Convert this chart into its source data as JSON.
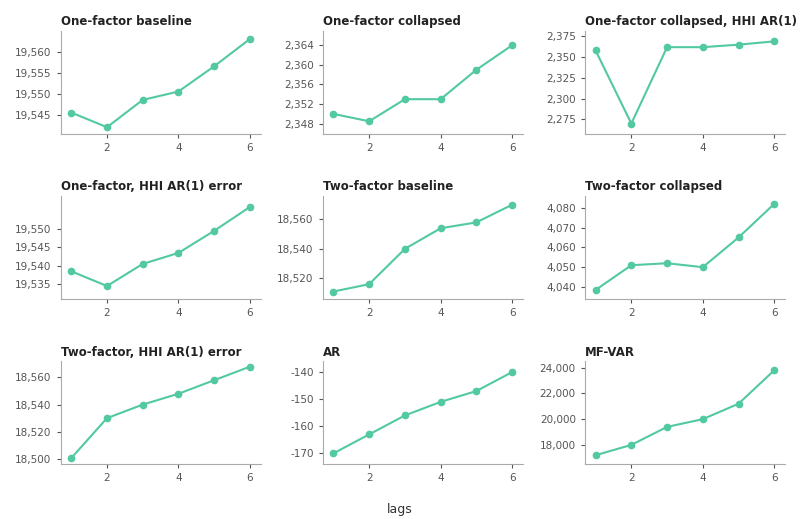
{
  "panels": [
    {
      "title": "One-factor baseline",
      "x": [
        1,
        2,
        3,
        4,
        5,
        6
      ],
      "y": [
        19545.5,
        19542.0,
        19548.5,
        19550.5,
        19556.5,
        19563.0
      ],
      "yticks": [
        19545,
        19550,
        19555,
        19560
      ],
      "ylim": [
        19540.5,
        19565
      ]
    },
    {
      "title": "One-factor collapsed",
      "x": [
        1,
        2,
        3,
        4,
        5,
        6
      ],
      "y": [
        2350.0,
        2348.5,
        2353.0,
        2353.0,
        2359.0,
        2364.0
      ],
      "yticks": [
        2348,
        2352,
        2356,
        2360,
        2364
      ],
      "ylim": [
        2346,
        2367
      ]
    },
    {
      "title": "One-factor collapsed, HHI AR(1) error",
      "x": [
        1,
        2,
        3,
        4,
        5,
        6
      ],
      "y": [
        2358.0,
        2270.0,
        2362.0,
        2362.0,
        2365.0,
        2369.0
      ],
      "yticks": [
        2275,
        2300,
        2325,
        2350,
        2375
      ],
      "ylim": [
        2258,
        2382
      ]
    },
    {
      "title": "One-factor, HHI AR(1) error",
      "x": [
        1,
        2,
        3,
        4,
        5,
        6
      ],
      "y": [
        19538.5,
        19534.5,
        19540.5,
        19543.5,
        19549.5,
        19556.0
      ],
      "yticks": [
        19535,
        19540,
        19545,
        19550
      ],
      "ylim": [
        19531,
        19559
      ]
    },
    {
      "title": "Two-factor baseline",
      "x": [
        1,
        2,
        3,
        4,
        5,
        6
      ],
      "y": [
        18511.0,
        18516.0,
        18540.0,
        18554.0,
        18558.0,
        18570.0
      ],
      "yticks": [
        18520,
        18540,
        18560
      ],
      "ylim": [
        18506,
        18576
      ]
    },
    {
      "title": "Two-factor collapsed",
      "x": [
        1,
        2,
        3,
        4,
        5,
        6
      ],
      "y": [
        4038.5,
        4051.0,
        4052.0,
        4050.0,
        4065.0,
        4082.0
      ],
      "yticks": [
        4040,
        4050,
        4060,
        4070,
        4080
      ],
      "ylim": [
        4034,
        4086
      ]
    },
    {
      "title": "Two-factor, HHI AR(1) error",
      "x": [
        1,
        2,
        3,
        4,
        5,
        6
      ],
      "y": [
        18500.5,
        18530.0,
        18540.0,
        18548.0,
        18558.0,
        18568.0
      ],
      "yticks": [
        18500,
        18520,
        18540,
        18560
      ],
      "ylim": [
        18496,
        18572
      ]
    },
    {
      "title": "AR",
      "x": [
        1,
        2,
        3,
        4,
        5,
        6
      ],
      "y": [
        -170.0,
        -163.0,
        -156.0,
        -151.0,
        -147.0,
        -140.0
      ],
      "yticks": [
        -170,
        -160,
        -150,
        -140
      ],
      "ylim": [
        -174,
        -136
      ]
    },
    {
      "title": "MF-VAR",
      "x": [
        1,
        2,
        3,
        4,
        5,
        6
      ],
      "y": [
        17200.0,
        18000.0,
        19400.0,
        20000.0,
        21200.0,
        23800.0
      ],
      "yticks": [
        18000,
        20000,
        22000,
        24000
      ],
      "ylim": [
        16500,
        24500
      ]
    }
  ],
  "line_color": "#52c9a0",
  "marker": "o",
  "markersize": 4.5,
  "linewidth": 1.5,
  "xlabel": "lags",
  "xlabel_fontsize": 9,
  "title_fontsize": 8.5,
  "tick_fontsize": 7.5,
  "background_color": "#ffffff",
  "spine_color": "#aaaaaa",
  "tick_color": "#555555"
}
